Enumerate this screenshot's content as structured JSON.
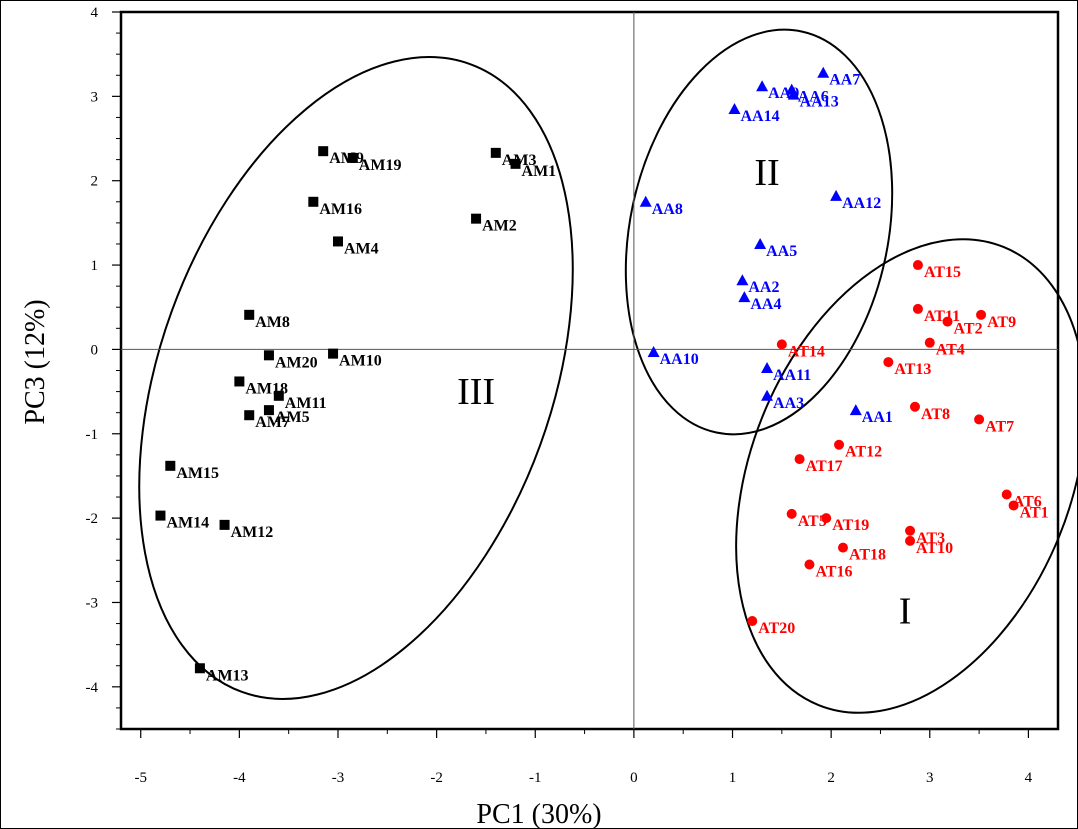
{
  "chart_data": {
    "type": "scatter",
    "xlabel": "PC1 (30%)",
    "ylabel": "PC3 (12%)",
    "xlim": [
      -5.2,
      4.3
    ],
    "ylim": [
      -4.5,
      4.0
    ],
    "x_ticks": [
      -5,
      -4,
      -3,
      -2,
      -1,
      0,
      1,
      2,
      3,
      4
    ],
    "y_ticks": [
      4,
      3,
      2,
      1,
      0,
      -1,
      -2,
      -3,
      -4
    ],
    "x_tick_labels": [
      "-5",
      "-4",
      "-3",
      "-2",
      "-1",
      "0",
      "1",
      "2",
      "3",
      "4"
    ],
    "y_tick_labels": [
      "4",
      "3",
      "2",
      "1",
      "0",
      "-1",
      "-2",
      "-3",
      "-4"
    ],
    "reference_lines": {
      "x": 0,
      "y": 0
    },
    "series": [
      {
        "marker": "square",
        "color": "#000000",
        "points": [
          {
            "label": "AM1",
            "x": -1.2,
            "y": 2.2
          },
          {
            "label": "AM2",
            "x": -1.6,
            "y": 1.55
          },
          {
            "label": "AM3",
            "x": -1.4,
            "y": 2.33
          },
          {
            "label": "AM4",
            "x": -3.0,
            "y": 1.28
          },
          {
            "label": "AM5",
            "x": -3.7,
            "y": -0.72
          },
          {
            "label": "AM7",
            "x": -3.9,
            "y": -0.78
          },
          {
            "label": "AM8",
            "x": -3.9,
            "y": 0.41
          },
          {
            "label": "AM9",
            "x": -3.15,
            "y": 2.35
          },
          {
            "label": "AM10",
            "x": -3.05,
            "y": -0.05
          },
          {
            "label": "AM11",
            "x": -3.6,
            "y": -0.55
          },
          {
            "label": "AM12",
            "x": -4.15,
            "y": -2.08
          },
          {
            "label": "AM13",
            "x": -4.4,
            "y": -3.78
          },
          {
            "label": "AM14",
            "x": -4.8,
            "y": -1.97
          },
          {
            "label": "AM15",
            "x": -4.7,
            "y": -1.38
          },
          {
            "label": "AM16",
            "x": -3.25,
            "y": 1.75
          },
          {
            "label": "AM18",
            "x": -4.0,
            "y": -0.38
          },
          {
            "label": "AM19",
            "x": -2.85,
            "y": 2.27
          },
          {
            "label": "AM20",
            "x": -3.7,
            "y": -0.07
          }
        ]
      },
      {
        "marker": "triangle",
        "color": "#0000ff",
        "points": [
          {
            "label": "AA1",
            "x": 2.25,
            "y": -0.72
          },
          {
            "label": "AA2",
            "x": 1.1,
            "y": 0.82
          },
          {
            "label": "AA3",
            "x": 1.35,
            "y": -0.55
          },
          {
            "label": "AA4",
            "x": 1.12,
            "y": 0.62
          },
          {
            "label": "AA5",
            "x": 1.28,
            "y": 1.25
          },
          {
            "label": "AA6",
            "x": 1.6,
            "y": 3.08
          },
          {
            "label": "AA7",
            "x": 1.92,
            "y": 3.28
          },
          {
            "label": "AA8",
            "x": 0.12,
            "y": 1.75
          },
          {
            "label": "AA9",
            "x": 1.3,
            "y": 3.12
          },
          {
            "label": "AA10",
            "x": 0.2,
            "y": -0.03
          },
          {
            "label": "AA11",
            "x": 1.35,
            "y": -0.22
          },
          {
            "label": "AA12",
            "x": 2.05,
            "y": 1.82
          },
          {
            "label": "AA13",
            "x": 1.62,
            "y": 3.02
          },
          {
            "label": "AA14",
            "x": 1.02,
            "y": 2.85
          }
        ]
      },
      {
        "marker": "circle",
        "color": "#ff0000",
        "points": [
          {
            "label": "AT1",
            "x": 3.85,
            "y": -1.85
          },
          {
            "label": "AT2",
            "x": 3.18,
            "y": 0.33
          },
          {
            "label": "AT3",
            "x": 2.8,
            "y": -2.15
          },
          {
            "label": "AT4",
            "x": 3.0,
            "y": 0.08
          },
          {
            "label": "AT5",
            "x": 1.6,
            "y": -1.95
          },
          {
            "label": "AT6",
            "x": 3.78,
            "y": -1.72
          },
          {
            "label": "AT7",
            "x": 3.5,
            "y": -0.83
          },
          {
            "label": "AT8",
            "x": 2.85,
            "y": -0.68
          },
          {
            "label": "AT9",
            "x": 3.52,
            "y": 0.41
          },
          {
            "label": "AT10",
            "x": 2.8,
            "y": -2.27
          },
          {
            "label": "AT11",
            "x": 2.88,
            "y": 0.48
          },
          {
            "label": "AT12",
            "x": 2.08,
            "y": -1.13
          },
          {
            "label": "AT13",
            "x": 2.58,
            "y": -0.15
          },
          {
            "label": "AT14",
            "x": 1.5,
            "y": 0.06
          },
          {
            "label": "AT15",
            "x": 2.88,
            "y": 1.0
          },
          {
            "label": "AT16",
            "x": 1.78,
            "y": -2.55
          },
          {
            "label": "AT17",
            "x": 1.68,
            "y": -1.3
          },
          {
            "label": "AT18",
            "x": 2.12,
            "y": -2.35
          },
          {
            "label": "AT19",
            "x": 1.95,
            "y": -2.0
          },
          {
            "label": "AT20",
            "x": 1.2,
            "y": -3.22
          }
        ]
      }
    ],
    "groups": [
      {
        "name": "I",
        "x": 2.75,
        "y": -3.25
      },
      {
        "name": "II",
        "x": 1.35,
        "y": 1.95
      },
      {
        "name": "III",
        "x": -1.6,
        "y": -0.65
      }
    ]
  }
}
